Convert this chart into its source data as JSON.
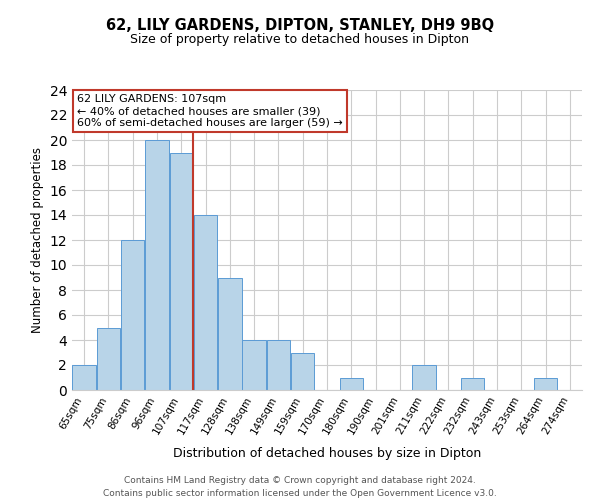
{
  "title": "62, LILY GARDENS, DIPTON, STANLEY, DH9 9BQ",
  "subtitle": "Size of property relative to detached houses in Dipton",
  "xlabel": "Distribution of detached houses by size in Dipton",
  "ylabel": "Number of detached properties",
  "bin_labels": [
    "65sqm",
    "75sqm",
    "86sqm",
    "96sqm",
    "107sqm",
    "117sqm",
    "128sqm",
    "138sqm",
    "149sqm",
    "159sqm",
    "170sqm",
    "180sqm",
    "190sqm",
    "201sqm",
    "211sqm",
    "222sqm",
    "232sqm",
    "243sqm",
    "253sqm",
    "264sqm",
    "274sqm"
  ],
  "bin_counts": [
    2,
    5,
    12,
    20,
    19,
    14,
    9,
    4,
    4,
    3,
    0,
    1,
    0,
    0,
    2,
    0,
    1,
    0,
    0,
    1,
    0
  ],
  "highlight_bin_index": 4,
  "bar_color": "#b8d4e8",
  "bar_edge_color": "#5b9bd5",
  "highlight_line_color": "#c0392b",
  "annotation_line1": "62 LILY GARDENS: 107sqm",
  "annotation_line2": "← 40% of detached houses are smaller (39)",
  "annotation_line3": "60% of semi-detached houses are larger (59) →",
  "annotation_box_color": "#ffffff",
  "annotation_box_edge_color": "#c0392b",
  "ylim": [
    0,
    24
  ],
  "yticks": [
    0,
    2,
    4,
    6,
    8,
    10,
    12,
    14,
    16,
    18,
    20,
    22,
    24
  ],
  "footer_line1": "Contains HM Land Registry data © Crown copyright and database right 2024.",
  "footer_line2": "Contains public sector information licensed under the Open Government Licence v3.0.",
  "background_color": "#ffffff",
  "grid_color": "#cccccc",
  "title_fontsize": 10.5,
  "subtitle_fontsize": 9,
  "ylabel_fontsize": 8.5,
  "xlabel_fontsize": 9,
  "tick_fontsize": 7.5,
  "annotation_fontsize": 8,
  "footer_fontsize": 6.5
}
